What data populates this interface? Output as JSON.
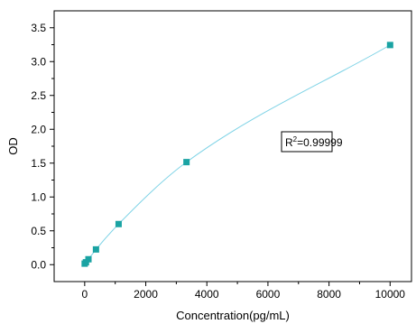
{
  "chart_data": {
    "type": "scatter",
    "xlabel": "Concentration(pg/mL)",
    "ylabel": "OD",
    "xlim": [
      -1000,
      10700
    ],
    "ylim": [
      -0.25,
      3.75
    ],
    "x_ticks": [
      0,
      2000,
      4000,
      6000,
      8000,
      10000
    ],
    "y_ticks": [
      0.0,
      0.5,
      1.0,
      1.5,
      2.0,
      2.5,
      3.0,
      3.5
    ],
    "x_tick_labels": [
      "0",
      "2000",
      "4000",
      "6000",
      "8000",
      "10000"
    ],
    "y_tick_labels": [
      "0.0",
      "0.5",
      "1.0",
      "1.5",
      "2.0",
      "2.5",
      "3.0",
      "3.5"
    ],
    "grid": false,
    "series": [
      {
        "x": [
          0,
          41,
          123,
          370,
          1111,
          3333,
          10000
        ],
        "y": [
          0.015,
          0.035,
          0.08,
          0.225,
          0.6,
          1.515,
          3.245
        ],
        "marker": "square",
        "color": "#1aa3a3"
      }
    ],
    "fit_curve": {
      "color": "#7fd3e6"
    },
    "annotation": {
      "r2_prefix": "R",
      "r2_sup": "2",
      "r2_value": "=0.99999"
    }
  }
}
